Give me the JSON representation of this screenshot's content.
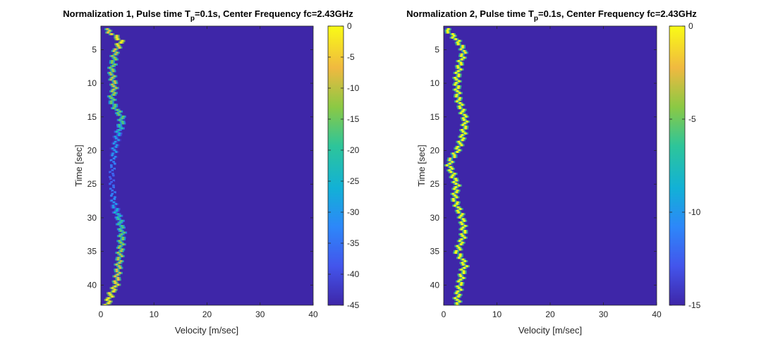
{
  "chart_data": [
    {
      "type": "heatmap",
      "title": "Normalization 1, Pulse time T",
      "title_sub": "p",
      "title_rest": "=0.1s, Center Frequency fc=2.43GHz",
      "xlabel": "Velocity [m/sec]",
      "ylabel": "Time [sec]",
      "xlim": [
        0,
        40
      ],
      "ylim": [
        1.5,
        43
      ],
      "y_reversed": true,
      "xticks": [
        0,
        10,
        20,
        30,
        40
      ],
      "yticks": [
        5,
        10,
        15,
        20,
        25,
        30,
        35,
        40
      ],
      "colorbar": {
        "min": -45,
        "max": 0,
        "ticks": [
          0,
          -5,
          -10,
          -15,
          -20,
          -25,
          -30,
          -35,
          -40,
          -45
        ],
        "colormap": "parula"
      },
      "trace": {
        "time": [
          1.8,
          2.5,
          3,
          3.5,
          4,
          5,
          6,
          7,
          8,
          9,
          10,
          11,
          12,
          13,
          14,
          15,
          16,
          18,
          20,
          24,
          28,
          30,
          32,
          34,
          36,
          38,
          40,
          41,
          42,
          42.8
        ],
        "velocity": [
          1.0,
          2.0,
          3.0,
          3.8,
          3.5,
          2.8,
          2.5,
          2.3,
          2.0,
          2.2,
          2.5,
          2.5,
          2.0,
          2.3,
          3.2,
          4.0,
          3.8,
          3.0,
          2.5,
          2.0,
          2.5,
          3.5,
          4.0,
          3.8,
          3.5,
          3.2,
          2.8,
          2.0,
          1.5,
          1.2
        ],
        "peak_db": [
          -8,
          -5,
          -3,
          -1,
          -2,
          -8,
          -12,
          -14,
          -12,
          -10,
          -9,
          -10,
          -14,
          -16,
          -15,
          -16,
          -18,
          -30,
          -30,
          -38,
          -30,
          -20,
          -16,
          -12,
          -10,
          -8,
          -4,
          -3,
          -2,
          -3
        ]
      }
    },
    {
      "type": "heatmap",
      "title": "Normalization 2, Pulse time T",
      "title_sub": "p",
      "title_rest": "=0.1s, Center Frequency fc=2.43GHz",
      "xlabel": "Velocity [m/sec]",
      "ylabel": "Time [sec]",
      "xlim": [
        0,
        40
      ],
      "ylim": [
        1.5,
        43
      ],
      "y_reversed": true,
      "xticks": [
        0,
        10,
        20,
        30,
        40
      ],
      "yticks": [
        5,
        10,
        15,
        20,
        25,
        30,
        35,
        40
      ],
      "colorbar": {
        "min": -15,
        "max": 0,
        "ticks": [
          0,
          -5,
          -10,
          -15
        ],
        "colormap": "parula"
      },
      "trace": {
        "time": [
          1.8,
          3,
          4,
          5,
          6,
          7,
          8,
          9,
          10,
          12,
          14,
          15,
          16,
          18,
          20,
          21,
          22,
          23,
          25,
          27,
          28,
          30,
          32,
          33,
          34,
          35,
          36,
          37,
          38,
          40,
          42,
          42.8
        ],
        "velocity": [
          0.5,
          2.0,
          3.0,
          3.8,
          3.5,
          3.0,
          2.8,
          2.5,
          2.5,
          2.7,
          3.5,
          4.0,
          4.0,
          3.5,
          2.5,
          1.5,
          1.0,
          1.5,
          2.5,
          2.0,
          2.5,
          3.5,
          3.8,
          3.5,
          3.0,
          2.5,
          3.5,
          4.0,
          3.5,
          3.0,
          2.5,
          2.8
        ],
        "peak_db": [
          0,
          0,
          0,
          -1,
          0,
          0,
          0,
          0,
          0,
          0,
          0,
          0,
          0,
          0,
          0,
          -1,
          0,
          0,
          0,
          0,
          0,
          0,
          0,
          0,
          0,
          0,
          0,
          0,
          0,
          0,
          0,
          0
        ]
      }
    }
  ]
}
